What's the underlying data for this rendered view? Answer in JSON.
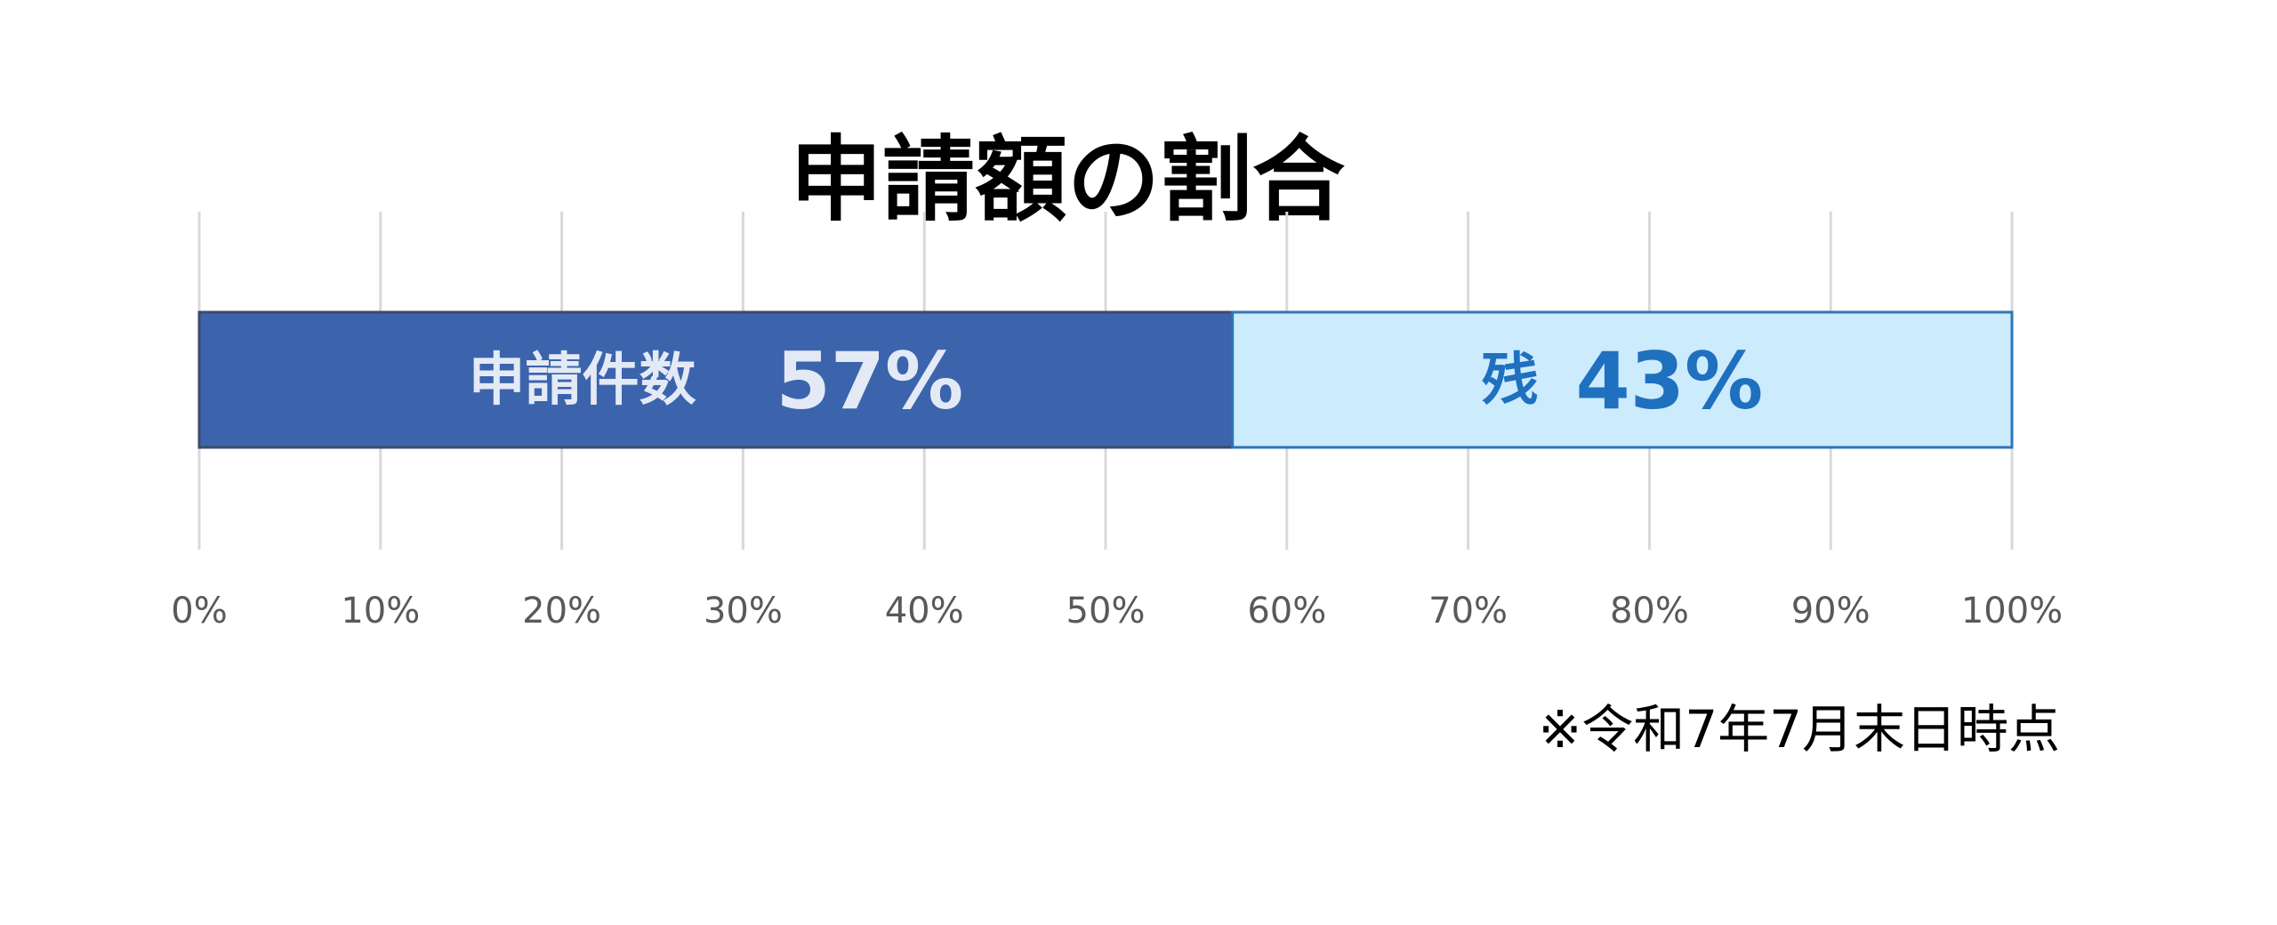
{
  "chart_data": {
    "type": "bar",
    "orientation": "horizontal",
    "stacked": true,
    "title": "申請額の割合",
    "xlim": [
      0,
      100
    ],
    "x_ticks": [
      0,
      10,
      20,
      30,
      40,
      50,
      60,
      70,
      80,
      90,
      100
    ],
    "x_tick_labels": [
      "0%",
      "10%",
      "20%",
      "30%",
      "40%",
      "50%",
      "60%",
      "70%",
      "80%",
      "90%",
      "100%"
    ],
    "grid": true,
    "series": [
      {
        "name": "申請件数",
        "value": 57,
        "value_label": "57%",
        "fill_color": "#3B64AD",
        "border_color": "#3C4A6B",
        "label_color": "#E3EAF6"
      },
      {
        "name": "残",
        "value": 43,
        "value_label": "43%",
        "fill_color": "#CCEBFC",
        "border_color": "#2E75B6",
        "label_color": "#1F70BF"
      }
    ],
    "annotation": "※令和7年7月末日時点"
  }
}
